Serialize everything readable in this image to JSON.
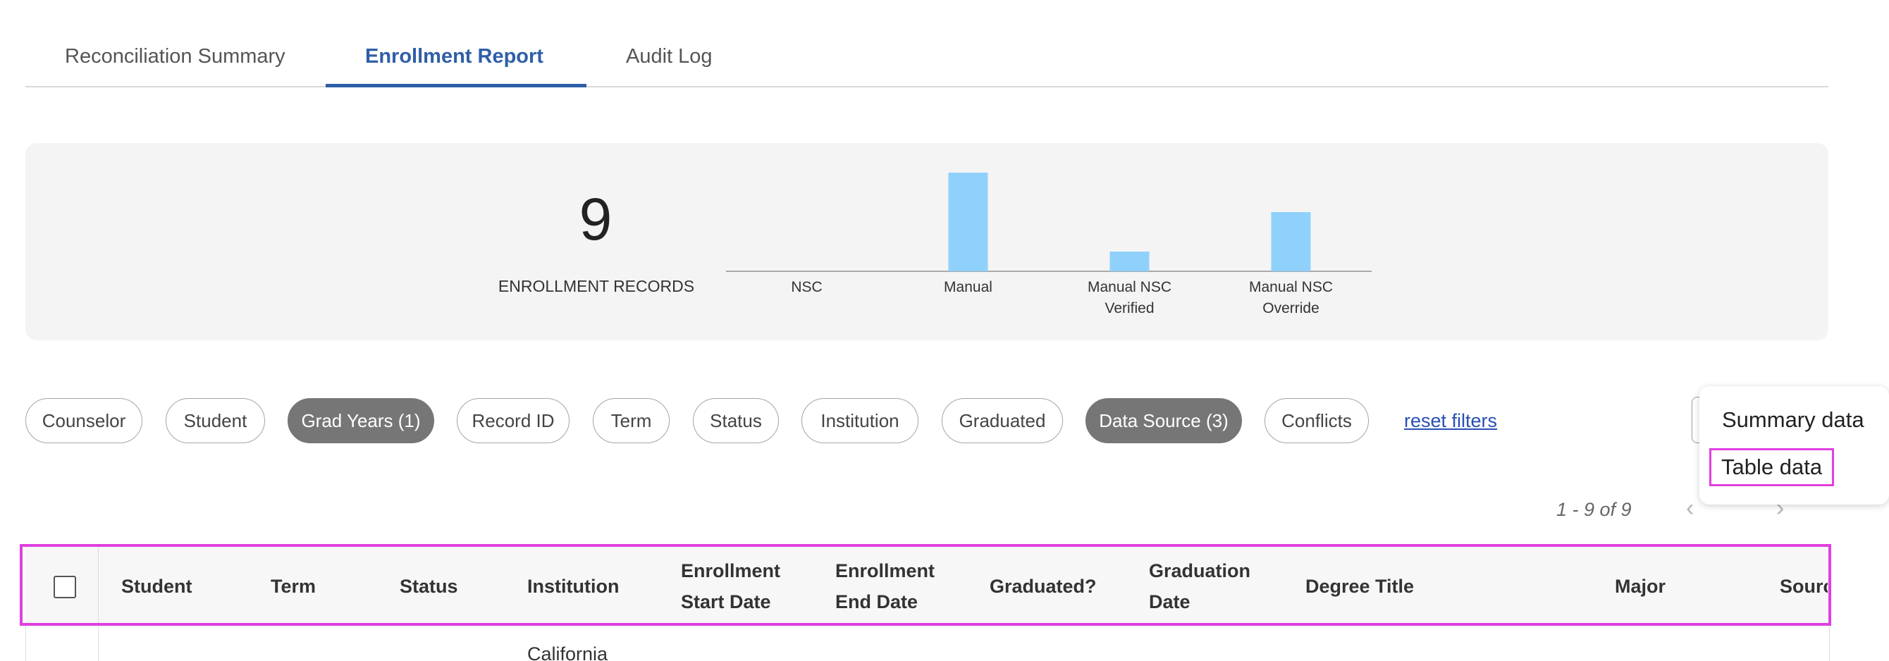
{
  "tabs": [
    {
      "label": "Reconciliation Summary"
    },
    {
      "label": "Enrollment Report"
    },
    {
      "label": "Audit Log"
    }
  ],
  "summary": {
    "count": "9",
    "count_label": "ENROLLMENT RECORDS"
  },
  "chart_data": {
    "type": "bar",
    "categories": [
      "NSC",
      "Manual",
      "Manual NSC Verified",
      "Manual NSC Override"
    ],
    "category_lines": [
      [
        "NSC"
      ],
      [
        "Manual"
      ],
      [
        "Manual NSC",
        "Verified"
      ],
      [
        "Manual NSC",
        "Override"
      ]
    ],
    "values": [
      0,
      5,
      1,
      3
    ],
    "ylim": [
      0,
      5
    ],
    "bar_color": "#8fd1fb",
    "axis_color": "#aaaaaa"
  },
  "filters": [
    {
      "label": "Counselor"
    },
    {
      "label": "Student"
    },
    {
      "label": "Grad Years (1)"
    },
    {
      "label": "Record ID"
    },
    {
      "label": "Term"
    },
    {
      "label": "Status"
    },
    {
      "label": "Institution"
    },
    {
      "label": "Graduated"
    },
    {
      "label": "Data Source (3)"
    },
    {
      "label": "Conflicts"
    }
  ],
  "reset_filters": "reset filters",
  "export_menu": {
    "items": [
      {
        "label": "Summary data"
      },
      {
        "label": "Table data"
      }
    ]
  },
  "pagination": {
    "text": "1 - 9 of 9",
    "prev_icon": "chevron-left-icon",
    "next_icon": "chevron-right-icon"
  },
  "table": {
    "columns": [
      {
        "line1": "Student",
        "line2": ""
      },
      {
        "line1": "Term",
        "line2": ""
      },
      {
        "line1": "Status",
        "line2": ""
      },
      {
        "line1": "Institution",
        "line2": ""
      },
      {
        "line1": "Enrollment",
        "line2": "Start Date"
      },
      {
        "line1": "Enrollment",
        "line2": "End Date"
      },
      {
        "line1": "Graduated?",
        "line2": ""
      },
      {
        "line1": "Graduation",
        "line2": "Date"
      },
      {
        "line1": "Degree Title",
        "line2": ""
      },
      {
        "line1": "Major",
        "line2": ""
      },
      {
        "line1": "Sourc",
        "line2": ""
      }
    ],
    "first_row": {
      "institution": "California"
    }
  },
  "colors": {
    "accent": "#2f5ea8",
    "chip_active": "#767676",
    "highlight": "#e040e0"
  }
}
